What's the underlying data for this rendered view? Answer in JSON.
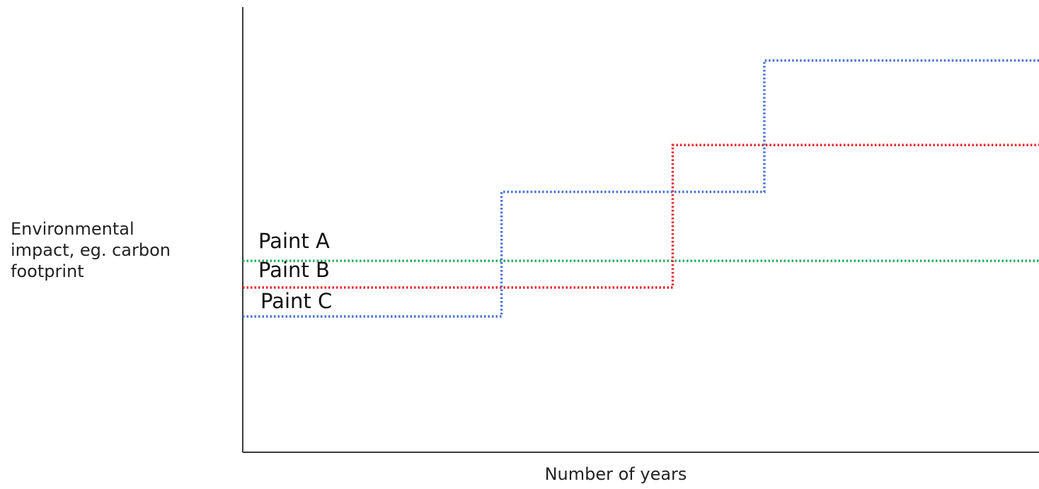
{
  "chart_data": {
    "type": "line",
    "step": true,
    "xlabel": "Number of years",
    "ylabel": "Environmental\nimpact, eg. carbon\nfootprint",
    "title": "",
    "xlim": [
      0,
      100
    ],
    "ylim": [
      0,
      100
    ],
    "grid": false,
    "series": [
      {
        "name": "Paint A",
        "color": "#2eaa64",
        "points": [
          [
            0,
            43
          ],
          [
            100,
            43
          ]
        ]
      },
      {
        "name": "Paint B",
        "color": "#e8252e",
        "points": [
          [
            0,
            37
          ],
          [
            54,
            37
          ],
          [
            54,
            69
          ],
          [
            100,
            69
          ]
        ]
      },
      {
        "name": "Paint C",
        "color": "#4a72d6",
        "points": [
          [
            0,
            30.5
          ],
          [
            32.5,
            30.5
          ],
          [
            32.5,
            58.5
          ],
          [
            65.5,
            58.5
          ],
          [
            65.5,
            88
          ],
          [
            100,
            88
          ]
        ]
      }
    ]
  }
}
